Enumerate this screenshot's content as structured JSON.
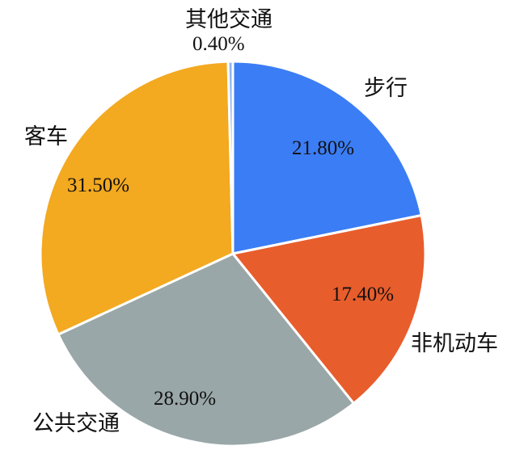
{
  "chart_data": {
    "type": "pie",
    "title": "",
    "slices": [
      {
        "label": "步行",
        "value": 21.8,
        "display": "21.80%",
        "color": "#3b7df4"
      },
      {
        "label": "非机动车",
        "value": 17.4,
        "display": "17.40%",
        "color": "#e85d2c"
      },
      {
        "label": "公共交通",
        "value": 28.9,
        "display": "28.90%",
        "color": "#9aa7a8"
      },
      {
        "label": "客车",
        "value": 31.5,
        "display": "31.50%",
        "color": "#f3a920"
      },
      {
        "label": "其他交通",
        "value": 0.4,
        "display": "0.40%",
        "color": "#8fb4f0"
      }
    ],
    "start_angle": "top",
    "direction": "clockwise",
    "legend": "none"
  }
}
